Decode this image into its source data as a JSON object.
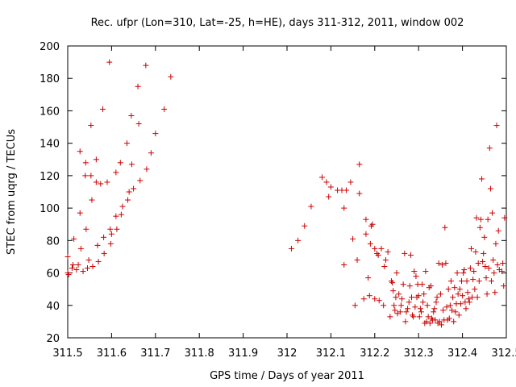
{
  "chart_data": {
    "type": "scatter",
    "title": "Rec. ufpr (Lon=310, Lat=-25, h=HE), days 311-312, 2011, window 002",
    "xlabel": "GPS time / Days of year 2011",
    "ylabel": "STEC from uqrg / TECUs",
    "xlim": [
      311.5,
      312.5
    ],
    "ylim": [
      20,
      200
    ],
    "x_ticks": [
      311.5,
      311.6,
      311.7,
      311.8,
      311.9,
      312,
      312.1,
      312.2,
      312.3,
      312.4,
      312.5
    ],
    "x_tick_labels": [
      "311.5",
      "311.6",
      "311.7",
      "311.8",
      "311.9",
      "312",
      "312.1",
      "312.2",
      "312.3",
      "312.4",
      "312.5"
    ],
    "y_ticks": [
      20,
      40,
      60,
      80,
      100,
      120,
      140,
      160,
      180,
      200
    ],
    "y_tick_labels": [
      "20",
      "40",
      "60",
      "80",
      "100",
      "120",
      "140",
      "160",
      "180",
      "200"
    ],
    "grid": false,
    "legend": "none",
    "marker": "+",
    "color": "#cc0000",
    "series": [
      {
        "points": [
          [
            311.5,
            70
          ],
          [
            311.5,
            60
          ],
          [
            311.502,
            59
          ],
          [
            311.51,
            63
          ],
          [
            311.512,
            65
          ],
          [
            311.514,
            81
          ],
          [
            311.52,
            62
          ],
          [
            311.524,
            65
          ],
          [
            311.528,
            135
          ],
          [
            311.528,
            97
          ],
          [
            311.53,
            75
          ],
          [
            311.535,
            61
          ],
          [
            311.54,
            120
          ],
          [
            311.541,
            128
          ],
          [
            311.542,
            87
          ],
          [
            311.545,
            63
          ],
          [
            311.548,
            68
          ],
          [
            311.553,
            151
          ],
          [
            311.553,
            120
          ],
          [
            311.555,
            105
          ],
          [
            311.557,
            64
          ],
          [
            311.565,
            130
          ],
          [
            311.565,
            116
          ],
          [
            311.568,
            77
          ],
          [
            311.57,
            67
          ],
          [
            311.575,
            115
          ],
          [
            311.58,
            161
          ],
          [
            311.582,
            82
          ],
          [
            311.583,
            72
          ],
          [
            311.59,
            116
          ],
          [
            311.595,
            190
          ],
          [
            311.597,
            87
          ],
          [
            311.598,
            78
          ],
          [
            311.6,
            84
          ],
          [
            311.61,
            122
          ],
          [
            311.61,
            95
          ],
          [
            311.612,
            87
          ],
          [
            311.62,
            128
          ],
          [
            311.622,
            96
          ],
          [
            311.625,
            101
          ],
          [
            311.635,
            140
          ],
          [
            311.637,
            105
          ],
          [
            311.64,
            110
          ],
          [
            311.645,
            157
          ],
          [
            311.646,
            127
          ],
          [
            311.65,
            112
          ],
          [
            311.66,
            175
          ],
          [
            311.662,
            152
          ],
          [
            311.665,
            117
          ],
          [
            311.678,
            188
          ],
          [
            311.68,
            124
          ],
          [
            311.69,
            134
          ],
          [
            311.7,
            146
          ],
          [
            311.72,
            161
          ],
          [
            311.735,
            181
          ]
        ]
      },
      {
        "points": [
          [
            312.01,
            75
          ],
          [
            312.025,
            80
          ],
          [
            312.04,
            89
          ],
          [
            312.055,
            101
          ],
          [
            312.08,
            119
          ],
          [
            312.09,
            116
          ],
          [
            312.095,
            107
          ],
          [
            312.1,
            113
          ],
          [
            312.115,
            111
          ],
          [
            312.125,
            111
          ],
          [
            312.13,
            100
          ],
          [
            312.13,
            65
          ],
          [
            312.135,
            111
          ],
          [
            312.145,
            116
          ],
          [
            312.15,
            81
          ],
          [
            312.155,
            40
          ],
          [
            312.16,
            68
          ],
          [
            312.165,
            109
          ],
          [
            312.165,
            127
          ],
          [
            312.175,
            44
          ],
          [
            312.18,
            93
          ],
          [
            312.18,
            84
          ],
          [
            312.185,
            57
          ],
          [
            312.188,
            46
          ],
          [
            312.19,
            78
          ],
          [
            312.192,
            89
          ],
          [
            312.195,
            90
          ],
          [
            312.2,
            75
          ],
          [
            312.2,
            44
          ],
          [
            312.205,
            72
          ],
          [
            312.208,
            71
          ],
          [
            312.21,
            43
          ],
          [
            312.215,
            75
          ],
          [
            312.22,
            40
          ],
          [
            312.222,
            64
          ],
          [
            312.225,
            68
          ],
          [
            312.23,
            73
          ],
          [
            312.235,
            33
          ],
          [
            312.238,
            55
          ],
          [
            312.24,
            54
          ],
          [
            312.242,
            49
          ],
          [
            312.244,
            40
          ],
          [
            312.246,
            37
          ],
          [
            312.248,
            45
          ],
          [
            312.25,
            60
          ],
          [
            312.252,
            35
          ],
          [
            312.255,
            47
          ],
          [
            312.258,
            36
          ],
          [
            312.26,
            40
          ],
          [
            312.262,
            44
          ],
          [
            312.265,
            53
          ],
          [
            312.268,
            72
          ],
          [
            312.27,
            30
          ],
          [
            312.272,
            36
          ],
          [
            312.275,
            38
          ],
          [
            312.278,
            42
          ],
          [
            312.28,
            52
          ],
          [
            312.282,
            71
          ],
          [
            312.284,
            45
          ],
          [
            312.286,
            34
          ],
          [
            312.288,
            33
          ],
          [
            312.29,
            61
          ],
          [
            312.292,
            39
          ],
          [
            312.294,
            58
          ],
          [
            312.296,
            45
          ],
          [
            312.298,
            53
          ],
          [
            312.3,
            46
          ],
          [
            312.302,
            33
          ],
          [
            312.304,
            38
          ],
          [
            312.306,
            36
          ],
          [
            312.308,
            53
          ],
          [
            312.31,
            42
          ],
          [
            312.312,
            47
          ],
          [
            312.314,
            29
          ],
          [
            312.316,
            61
          ],
          [
            312.318,
            30
          ],
          [
            312.32,
            40
          ],
          [
            312.322,
            33
          ],
          [
            312.324,
            51
          ],
          [
            312.326,
            29
          ],
          [
            312.328,
            52
          ],
          [
            312.33,
            32
          ],
          [
            312.332,
            31
          ],
          [
            312.334,
            36
          ],
          [
            312.336,
            38
          ],
          [
            312.338,
            31
          ],
          [
            312.34,
            42
          ],
          [
            312.342,
            45
          ],
          [
            312.344,
            29
          ],
          [
            312.346,
            66
          ],
          [
            312.348,
            30
          ],
          [
            312.35,
            47
          ],
          [
            312.352,
            28
          ],
          [
            312.354,
            65
          ],
          [
            312.356,
            37
          ],
          [
            312.358,
            31
          ],
          [
            312.36,
            88
          ],
          [
            312.362,
            66
          ],
          [
            312.364,
            39
          ],
          [
            312.366,
            31
          ],
          [
            312.368,
            50
          ],
          [
            312.37,
            32
          ],
          [
            312.372,
            40
          ],
          [
            312.374,
            55
          ],
          [
            312.376,
            37
          ],
          [
            312.378,
            45
          ],
          [
            312.38,
            30
          ],
          [
            312.382,
            51
          ],
          [
            312.384,
            36
          ],
          [
            312.386,
            41
          ],
          [
            312.388,
            60
          ],
          [
            312.39,
            47
          ],
          [
            312.392,
            34
          ],
          [
            312.394,
            50
          ],
          [
            312.396,
            41
          ],
          [
            312.398,
            55
          ],
          [
            312.4,
            46
          ],
          [
            312.402,
            60
          ],
          [
            312.404,
            62
          ],
          [
            312.406,
            42
          ],
          [
            312.408,
            38
          ],
          [
            312.41,
            55
          ],
          [
            312.412,
            48
          ],
          [
            312.414,
            44
          ],
          [
            312.416,
            42
          ],
          [
            312.418,
            63
          ],
          [
            312.42,
            75
          ],
          [
            312.422,
            45
          ],
          [
            312.424,
            56
          ],
          [
            312.426,
            61
          ],
          [
            312.428,
            50
          ],
          [
            312.43,
            73
          ],
          [
            312.432,
            94
          ],
          [
            312.434,
            45
          ],
          [
            312.436,
            66
          ],
          [
            312.438,
            55
          ],
          [
            312.44,
            88
          ],
          [
            312.442,
            93
          ],
          [
            312.444,
            118
          ],
          [
            312.446,
            67
          ],
          [
            312.448,
            72
          ],
          [
            312.45,
            82
          ],
          [
            312.452,
            64
          ],
          [
            312.454,
            57
          ],
          [
            312.456,
            47
          ],
          [
            312.458,
            93
          ],
          [
            312.46,
            63
          ],
          [
            312.462,
            137
          ],
          [
            312.464,
            112
          ],
          [
            312.466,
            55
          ],
          [
            312.468,
            97
          ],
          [
            312.47,
            68
          ],
          [
            312.472,
            60
          ],
          [
            312.474,
            48
          ],
          [
            312.476,
            78
          ],
          [
            312.478,
            151
          ],
          [
            312.48,
            65
          ],
          [
            312.482,
            86
          ],
          [
            312.484,
            62
          ],
          [
            312.49,
            61
          ],
          [
            312.492,
            66
          ],
          [
            312.494,
            52
          ],
          [
            312.496,
            94
          ]
        ]
      }
    ]
  }
}
